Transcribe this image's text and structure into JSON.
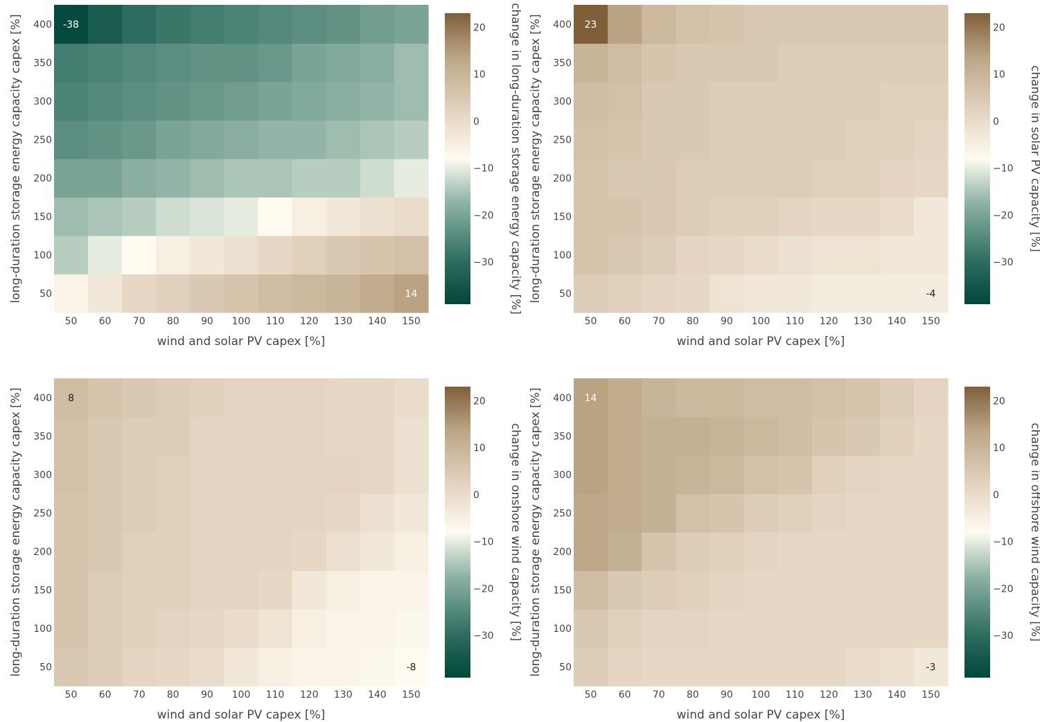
{
  "colors": {
    "scale": [
      [
        0.0,
        "#00463a"
      ],
      [
        0.15,
        "#2e6e60"
      ],
      [
        0.35,
        "#8fb3a5"
      ],
      [
        0.5,
        "#fffbf0"
      ],
      [
        0.65,
        "#e6d7c5"
      ],
      [
        0.85,
        "#bba585"
      ],
      [
        1.0,
        "#7f5f3a"
      ]
    ],
    "annotation_dark": "#ffffff",
    "annotation_light": "#222222"
  },
  "chart_data": [
    {
      "type": "heatmap",
      "x": [
        50,
        60,
        70,
        80,
        90,
        100,
        110,
        120,
        130,
        140,
        150
      ],
      "y": [
        50,
        100,
        150,
        200,
        250,
        300,
        350,
        400
      ],
      "z": [
        [
          -6,
          -3,
          1,
          3,
          5,
          6,
          8,
          9,
          10,
          12,
          14
        ],
        [
          -14,
          -10,
          -8,
          -5,
          -3,
          -1,
          1,
          3,
          5,
          6,
          7
        ],
        [
          -16,
          -15,
          -14,
          -12,
          -11,
          -10,
          -8,
          -5,
          -3,
          -1,
          0
        ],
        [
          -20,
          -20,
          -18,
          -17,
          -16,
          -15,
          -15,
          -14,
          -14,
          -12,
          -10
        ],
        [
          -24,
          -23,
          -22,
          -20,
          -19,
          -18,
          -17,
          -17,
          -16,
          -15,
          -14
        ],
        [
          -26,
          -25,
          -24,
          -23,
          -22,
          -21,
          -20,
          -19,
          -18,
          -17,
          -16
        ],
        [
          -27,
          -26,
          -25,
          -24,
          -23,
          -23,
          -22,
          -20,
          -19,
          -18,
          -16
        ],
        [
          -38,
          -34,
          -30,
          -28,
          -27,
          -26,
          -25,
          -24,
          -23,
          -21,
          -20
        ]
      ],
      "zmin": -39,
      "zmax": 23,
      "xlabel": "wind and solar PV capex [%]",
      "ylabel": "long-duration storage energy capacity capex [%]",
      "colorbar_title": "change in long-duration storage energy capacity [%]",
      "colorbar_ticks": [
        20,
        10,
        0,
        -10,
        -20,
        -30
      ],
      "annotations": [
        {
          "xi": 0,
          "yi": 7,
          "text": "-38"
        },
        {
          "xi": 10,
          "yi": 0,
          "text": "14"
        }
      ],
      "xticks": [
        "50",
        "60",
        "70",
        "80",
        "90",
        "100",
        "110",
        "120",
        "130",
        "140",
        "150"
      ],
      "yticks": [
        "50",
        "100",
        "150",
        "200",
        "250",
        "300",
        "350",
        "400"
      ]
    },
    {
      "type": "heatmap",
      "x": [
        50,
        60,
        70,
        80,
        90,
        100,
        110,
        120,
        130,
        140,
        150
      ],
      "y": [
        50,
        100,
        150,
        200,
        250,
        300,
        350,
        400
      ],
      "z": [
        [
          4,
          3,
          2,
          1,
          -2,
          -3,
          -3,
          -4,
          -4,
          -4,
          -4
        ],
        [
          6,
          5,
          4,
          2,
          1,
          0,
          -1,
          -2,
          -2,
          -3,
          -3
        ],
        [
          6,
          6,
          5,
          4,
          3,
          3,
          2,
          1,
          1,
          0,
          -3
        ],
        [
          6,
          5,
          5,
          4,
          4,
          4,
          4,
          3,
          3,
          2,
          1
        ],
        [
          7,
          6,
          5,
          5,
          4,
          4,
          4,
          4,
          3,
          3,
          2
        ],
        [
          8,
          7,
          5,
          5,
          4,
          4,
          4,
          4,
          4,
          3,
          3
        ],
        [
          10,
          8,
          6,
          5,
          5,
          5,
          4,
          4,
          4,
          4,
          4
        ],
        [
          23,
          14,
          9,
          7,
          6,
          5,
          5,
          5,
          5,
          5,
          5
        ]
      ],
      "zmin": -39,
      "zmax": 23,
      "xlabel": "wind and solar PV capex [%]",
      "ylabel": "long-duration storage energy capacity capex [%]",
      "colorbar_title": "change in solar PV capacity [%]",
      "colorbar_ticks": [
        20,
        10,
        0,
        -10,
        -20,
        -30
      ],
      "annotations": [
        {
          "xi": 0,
          "yi": 7,
          "text": "23"
        },
        {
          "xi": 10,
          "yi": 0,
          "text": "-4"
        }
      ],
      "xticks": [
        "50",
        "60",
        "70",
        "80",
        "90",
        "100",
        "110",
        "120",
        "130",
        "140",
        "150"
      ],
      "yticks": [
        "50",
        "100",
        "150",
        "200",
        "250",
        "300",
        "350",
        "400"
      ]
    },
    {
      "type": "heatmap",
      "x": [
        50,
        60,
        70,
        80,
        90,
        100,
        110,
        120,
        130,
        140,
        150
      ],
      "y": [
        50,
        100,
        150,
        200,
        250,
        300,
        350,
        400
      ],
      "z": [
        [
          5,
          4,
          2,
          1,
          0,
          -3,
          -5,
          -6,
          -6,
          -7,
          -8
        ],
        [
          6,
          4,
          3,
          2,
          1,
          0,
          -2,
          -5,
          -6,
          -6,
          -7
        ],
        [
          6,
          4,
          3,
          3,
          2,
          2,
          1,
          -3,
          -5,
          -6,
          -6
        ],
        [
          6,
          5,
          3,
          3,
          2,
          2,
          2,
          1,
          -1,
          -3,
          -5
        ],
        [
          6,
          5,
          4,
          3,
          2,
          2,
          2,
          2,
          1,
          -1,
          -3
        ],
        [
          7,
          5,
          4,
          3,
          2,
          2,
          2,
          2,
          2,
          1,
          -1
        ],
        [
          7,
          5,
          4,
          4,
          2,
          2,
          2,
          2,
          1,
          1,
          -1
        ],
        [
          8,
          6,
          5,
          4,
          3,
          2,
          2,
          2,
          1,
          1,
          0
        ]
      ],
      "zmin": -39,
      "zmax": 23,
      "xlabel": "wind and solar PV capex [%]",
      "ylabel": "long-duration storage energy capacity capex [%]",
      "colorbar_title": "change in onshore wind capacity [%]",
      "colorbar_ticks": [
        20,
        10,
        0,
        -10,
        -20,
        -30
      ],
      "annotations": [
        {
          "xi": 0,
          "yi": 7,
          "text": "8"
        },
        {
          "xi": 10,
          "yi": 0,
          "text": "-8"
        }
      ],
      "xticks": [
        "50",
        "60",
        "70",
        "80",
        "90",
        "100",
        "110",
        "120",
        "130",
        "140",
        "150"
      ],
      "yticks": [
        "50",
        "100",
        "150",
        "200",
        "250",
        "300",
        "350",
        "400"
      ]
    },
    {
      "type": "heatmap",
      "x": [
        50,
        60,
        70,
        80,
        90,
        100,
        110,
        120,
        130,
        140,
        150
      ],
      "y": [
        50,
        100,
        150,
        200,
        250,
        300,
        350,
        400
      ],
      "z": [
        [
          4,
          2,
          1,
          1,
          1,
          1,
          1,
          1,
          0,
          -1,
          -3
        ],
        [
          5,
          3,
          2,
          2,
          1,
          1,
          1,
          1,
          1,
          1,
          1
        ],
        [
          8,
          5,
          4,
          3,
          2,
          1,
          1,
          1,
          1,
          1,
          1
        ],
        [
          13,
          11,
          6,
          4,
          3,
          2,
          1,
          1,
          1,
          1,
          1
        ],
        [
          13,
          12,
          11,
          7,
          6,
          4,
          3,
          2,
          1,
          1,
          1
        ],
        [
          14,
          12,
          11,
          10,
          9,
          7,
          6,
          3,
          2,
          1,
          1
        ],
        [
          14,
          12,
          11,
          11,
          10,
          9,
          8,
          6,
          5,
          3,
          1
        ],
        [
          14,
          12,
          10,
          9,
          9,
          8,
          8,
          7,
          6,
          4,
          2
        ]
      ],
      "zmin": -39,
      "zmax": 23,
      "xlabel": "wind and solar PV capex [%]",
      "ylabel": "long-duration storage energy capacity capex [%]",
      "colorbar_title": "change in offshore wind capacity [%]",
      "colorbar_ticks": [
        20,
        10,
        0,
        -10,
        -20,
        -30
      ],
      "annotations": [
        {
          "xi": 0,
          "yi": 7,
          "text": "14"
        },
        {
          "xi": 10,
          "yi": 0,
          "text": "-3"
        }
      ],
      "xticks": [
        "50",
        "60",
        "70",
        "80",
        "90",
        "100",
        "110",
        "120",
        "130",
        "140",
        "150"
      ],
      "yticks": [
        "50",
        "100",
        "150",
        "200",
        "250",
        "300",
        "350",
        "400"
      ]
    }
  ]
}
